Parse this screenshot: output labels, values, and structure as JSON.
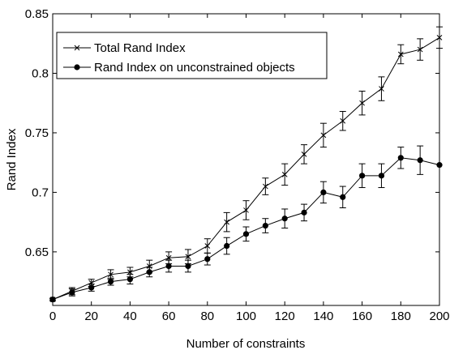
{
  "chart_data": {
    "type": "line",
    "xlabel": "Number of constraints",
    "ylabel": "Rand Index",
    "xlim": [
      0,
      200
    ],
    "ylim": [
      0.605,
      0.85
    ],
    "xticks": [
      0,
      20,
      40,
      60,
      80,
      100,
      120,
      140,
      160,
      180,
      200
    ],
    "yticks": [
      0.65,
      0.7,
      0.75,
      0.8,
      0.85
    ],
    "ytick_labels": [
      "0.65",
      "0.7",
      "0.75",
      "0.8",
      "0.85"
    ],
    "xtick_labels": [
      "0",
      "20",
      "40",
      "60",
      "80",
      "100",
      "120",
      "140",
      "160",
      "180",
      "200"
    ],
    "grid": false,
    "legend_position": "top-left",
    "x": [
      0,
      10,
      20,
      30,
      40,
      50,
      60,
      70,
      80,
      90,
      100,
      110,
      120,
      130,
      140,
      150,
      160,
      170,
      180,
      190,
      200
    ],
    "series": [
      {
        "name": "Total Rand Index",
        "marker": "x",
        "color": "#000000",
        "values": [
          0.61,
          0.617,
          0.624,
          0.631,
          0.633,
          0.638,
          0.645,
          0.646,
          0.655,
          0.675,
          0.685,
          0.705,
          0.715,
          0.732,
          0.748,
          0.76,
          0.775,
          0.787,
          0.816,
          0.82,
          0.83
        ],
        "errors": [
          0.001,
          0.003,
          0.003,
          0.004,
          0.004,
          0.005,
          0.005,
          0.006,
          0.006,
          0.008,
          0.008,
          0.007,
          0.009,
          0.008,
          0.01,
          0.008,
          0.01,
          0.01,
          0.008,
          0.009,
          0.009
        ]
      },
      {
        "name": "Rand Index on unconstrained objects",
        "marker": "circle",
        "color": "#000000",
        "values": [
          0.61,
          0.616,
          0.62,
          0.625,
          0.627,
          0.633,
          0.638,
          0.638,
          0.644,
          0.655,
          0.665,
          0.672,
          0.678,
          0.683,
          0.7,
          0.696,
          0.714,
          0.714,
          0.729,
          0.727,
          0.723
        ],
        "errors": [
          0.001,
          0.003,
          0.003,
          0.003,
          0.004,
          0.004,
          0.005,
          0.005,
          0.005,
          0.007,
          0.006,
          0.006,
          0.008,
          0.007,
          0.009,
          0.009,
          0.01,
          0.01,
          0.009,
          0.012,
          0.0
        ]
      }
    ]
  }
}
